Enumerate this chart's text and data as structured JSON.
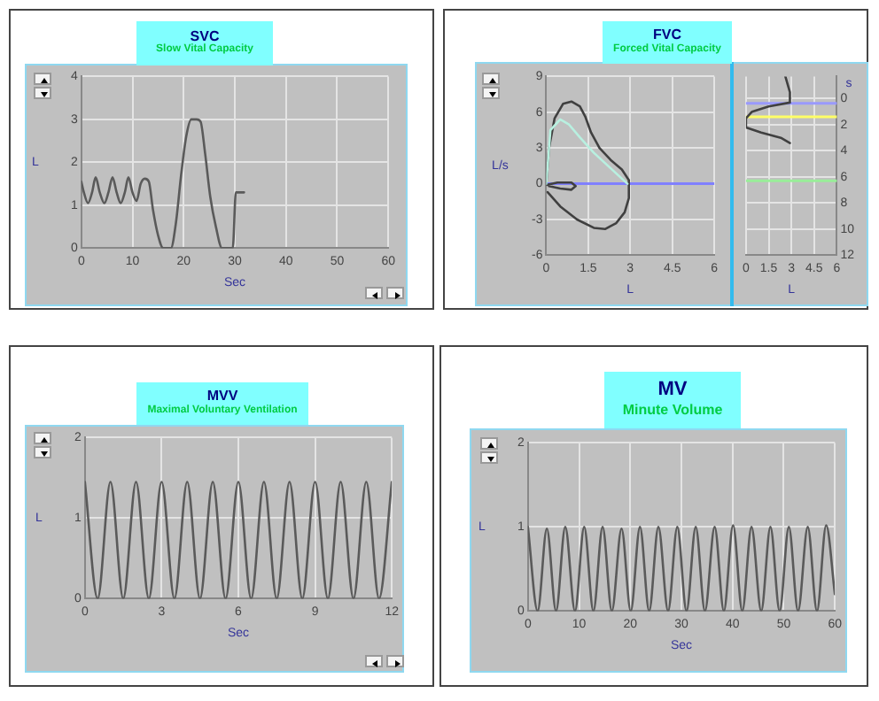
{
  "chart_data": [
    {
      "type": "line",
      "title": "SVC",
      "subtitle": "Slow Vital Capacity",
      "xlabel": "Sec",
      "ylabel": "L",
      "xlim": [
        0,
        60
      ],
      "xticks": [
        0,
        10,
        20,
        30,
        40,
        50,
        60
      ],
      "ylim": [
        0,
        4
      ],
      "yticks": [
        0,
        1,
        2,
        3,
        4
      ],
      "grid": true,
      "marker": "none",
      "color": "#5a5a5a",
      "x": [
        0,
        0.5,
        1.3,
        2.1,
        2.8,
        3.6,
        4.5,
        5.3,
        6.1,
        6.9,
        7.7,
        8.5,
        9.2,
        10.0,
        10.8,
        11.6,
        12.4,
        13.2,
        14,
        15,
        16,
        17.5,
        18.5,
        19.5,
        20.5,
        21.5,
        22.5,
        23.3,
        24.2,
        25.2,
        26.3,
        27.5,
        28.5,
        29.6,
        30.2,
        31.8
      ],
      "values": [
        1.55,
        1.3,
        1.05,
        1.3,
        1.65,
        1.3,
        1.05,
        1.3,
        1.65,
        1.3,
        1.05,
        1.3,
        1.65,
        1.3,
        1.1,
        1.5,
        1.62,
        1.55,
        0.9,
        0.3,
        0,
        0,
        0.6,
        1.7,
        2.6,
        3.0,
        3.0,
        2.95,
        2.2,
        1.2,
        0.5,
        0,
        0,
        0,
        1.3,
        1.3
      ]
    },
    {
      "type": "line",
      "title": "FVC",
      "subtitle": "Forced Vital Capacity",
      "xlabel": "L",
      "ylabel": "L/s",
      "xlim": [
        0,
        6
      ],
      "xticks": [
        0,
        1.5,
        3,
        4.5,
        6
      ],
      "ylim": [
        -6,
        9
      ],
      "yticks": [
        -6,
        -3,
        0,
        3,
        6,
        9
      ],
      "grid": true,
      "marker": "none",
      "ref_lines": [
        {
          "axis": "y",
          "value": 0,
          "color": "#8080ff"
        }
      ],
      "series": [
        {
          "color": "#b8f0e0",
          "x": [
            0,
            0.15,
            0.5,
            0.8,
            1.2,
            1.7,
            2.3,
            2.9
          ],
          "values": [
            0,
            4.5,
            5.4,
            5.0,
            3.9,
            2.6,
            1.3,
            0
          ]
        },
        {
          "color": "#404040",
          "x": [
            0,
            0.1,
            0.3,
            0.6,
            0.9,
            1.2,
            1.4,
            1.6,
            1.9,
            2.3,
            2.7,
            2.95,
            2.95,
            2.8,
            2.5,
            2.1,
            1.7,
            1.1,
            0.5,
            0.05
          ],
          "values": [
            0,
            3,
            5.5,
            6.7,
            6.9,
            6.5,
            5.6,
            4.3,
            3.0,
            2.0,
            1.2,
            0.3,
            -1.2,
            -2.4,
            -3.3,
            -3.8,
            -3.7,
            -3.0,
            -1.9,
            -0.7
          ]
        },
        {
          "color": "#404040",
          "x": [
            0,
            0.4,
            0.9,
            1.05,
            0.9,
            0.5,
            0.1
          ],
          "values": [
            -0.1,
            0.1,
            0.1,
            -0.2,
            -0.5,
            -0.4,
            -0.2
          ]
        }
      ]
    },
    {
      "type": "line",
      "xlabel": "L",
      "ylabel": "s",
      "xlim": [
        0,
        6
      ],
      "xticks": [
        0,
        1.5,
        3,
        4.5,
        6
      ],
      "ylim": [
        12,
        -1.7
      ],
      "yticks": [
        0,
        2,
        4,
        6,
        8,
        10,
        12
      ],
      "grid": true,
      "marker": "none",
      "color": "#404040",
      "ref_lines": [
        {
          "axis": "y",
          "value": 0.35,
          "color": "#9999ff"
        },
        {
          "axis": "y",
          "value": 1.4,
          "color": "#ffff66"
        },
        {
          "axis": "y",
          "value": 6.3,
          "color": "#99ee99"
        }
      ],
      "x": [
        2.6,
        2.9,
        2.9,
        1.5,
        0.4,
        0,
        0,
        1.0,
        2.3,
        2.9
      ],
      "values": [
        -1.7,
        -0.5,
        0.3,
        0.6,
        1.0,
        1.5,
        2.2,
        2.6,
        3.0,
        3.4
      ]
    },
    {
      "type": "line",
      "title": "MVV",
      "subtitle": "Maximal Voluntary Ventilation",
      "xlabel": "Sec",
      "ylabel": "L",
      "xlim": [
        0,
        12
      ],
      "xticks": [
        0,
        3,
        6,
        9,
        12
      ],
      "ylim": [
        0,
        2
      ],
      "yticks": [
        0,
        1,
        2
      ],
      "grid": true,
      "marker": "none",
      "color": "#5a5a5a",
      "x": [
        0,
        0.5,
        1,
        1.5,
        2,
        2.5,
        3,
        3.5,
        4,
        4.5,
        5,
        5.5,
        6,
        6.5,
        7,
        7.5,
        8,
        8.5,
        9,
        9.5,
        10,
        10.5,
        11,
        11.5,
        12
      ],
      "values": [
        1.45,
        0,
        1.45,
        0,
        1.45,
        0,
        1.45,
        0,
        1.45,
        0,
        1.45,
        0,
        1.45,
        0,
        1.45,
        0,
        1.45,
        0,
        1.45,
        0,
        1.45,
        0,
        1.45,
        0,
        1.45
      ]
    },
    {
      "type": "line",
      "title": "MV",
      "subtitle": "Minute Volume",
      "xlabel": "Sec",
      "ylabel": "L",
      "xlim": [
        0,
        60
      ],
      "xticks": [
        0,
        10,
        20,
        30,
        40,
        50,
        60
      ],
      "ylim": [
        0,
        2
      ],
      "yticks": [
        0,
        1,
        2
      ],
      "grid": true,
      "marker": "none",
      "color": "#5a5a5a",
      "x": [
        0,
        1.9,
        3.7,
        5.5,
        7.3,
        9.2,
        11.0,
        12.8,
        14.6,
        16.4,
        18.3,
        20.1,
        21.9,
        23.7,
        25.5,
        27.4,
        29.2,
        31.0,
        32.8,
        34.6,
        36.5,
        38.3,
        40.1,
        41.9,
        43.7,
        45.6,
        47.4,
        49.2,
        51.0,
        52.8,
        54.7,
        56.5,
        58.3,
        60
      ],
      "values": [
        1.0,
        0,
        0.98,
        0,
        1.0,
        0,
        1.0,
        0,
        1.0,
        0,
        0.98,
        0,
        1.0,
        0,
        1.0,
        0,
        1.0,
        0,
        1.0,
        0,
        1.0,
        0,
        1.02,
        0,
        1.0,
        0,
        1.0,
        0,
        1.0,
        0,
        1.0,
        0,
        1.02,
        0.2
      ]
    }
  ]
}
